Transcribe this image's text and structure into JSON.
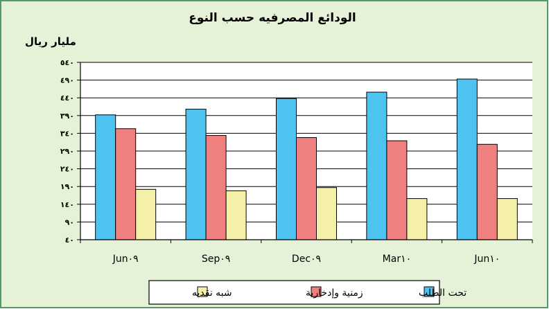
{
  "chart_data": {
    "type": "bar",
    "title": "الودائع المصرفيه حسب النوع",
    "ylabel": "مليار ريال",
    "xlabel": "",
    "categories": [
      "Jun٠٩",
      "Sep٠٩",
      "Dec٠٩",
      "Mar١٠",
      "Jun١٠"
    ],
    "yticks": [
      "٤٠",
      "٩٠",
      "١٤٠",
      "١٩٠",
      "٢٤٠",
      "٢٩٠",
      "٣٤٠",
      "٣٩٠",
      "٤٤٠",
      "٤٩٠",
      "٥٤٠"
    ],
    "ylim": [
      40,
      540
    ],
    "grid": true,
    "legend_position": "bottom",
    "series": [
      {
        "name": "تحت الطلب",
        "color": "#4FC3F0",
        "values": [
          392,
          408,
          438,
          456,
          493
        ]
      },
      {
        "name": "زمنية وإدخارية",
        "color": "#F08080",
        "values": [
          353,
          334,
          328,
          319,
          309
        ]
      },
      {
        "name": "شبه نقديه",
        "color": "#F5F0A8",
        "values": [
          182,
          178,
          187,
          156,
          156
        ]
      }
    ]
  },
  "colors": {
    "outer_background": "#E6F2D8",
    "outer_border": "#4E9A6A",
    "plot_background": "#FFFFFF",
    "grid": "#000000"
  }
}
